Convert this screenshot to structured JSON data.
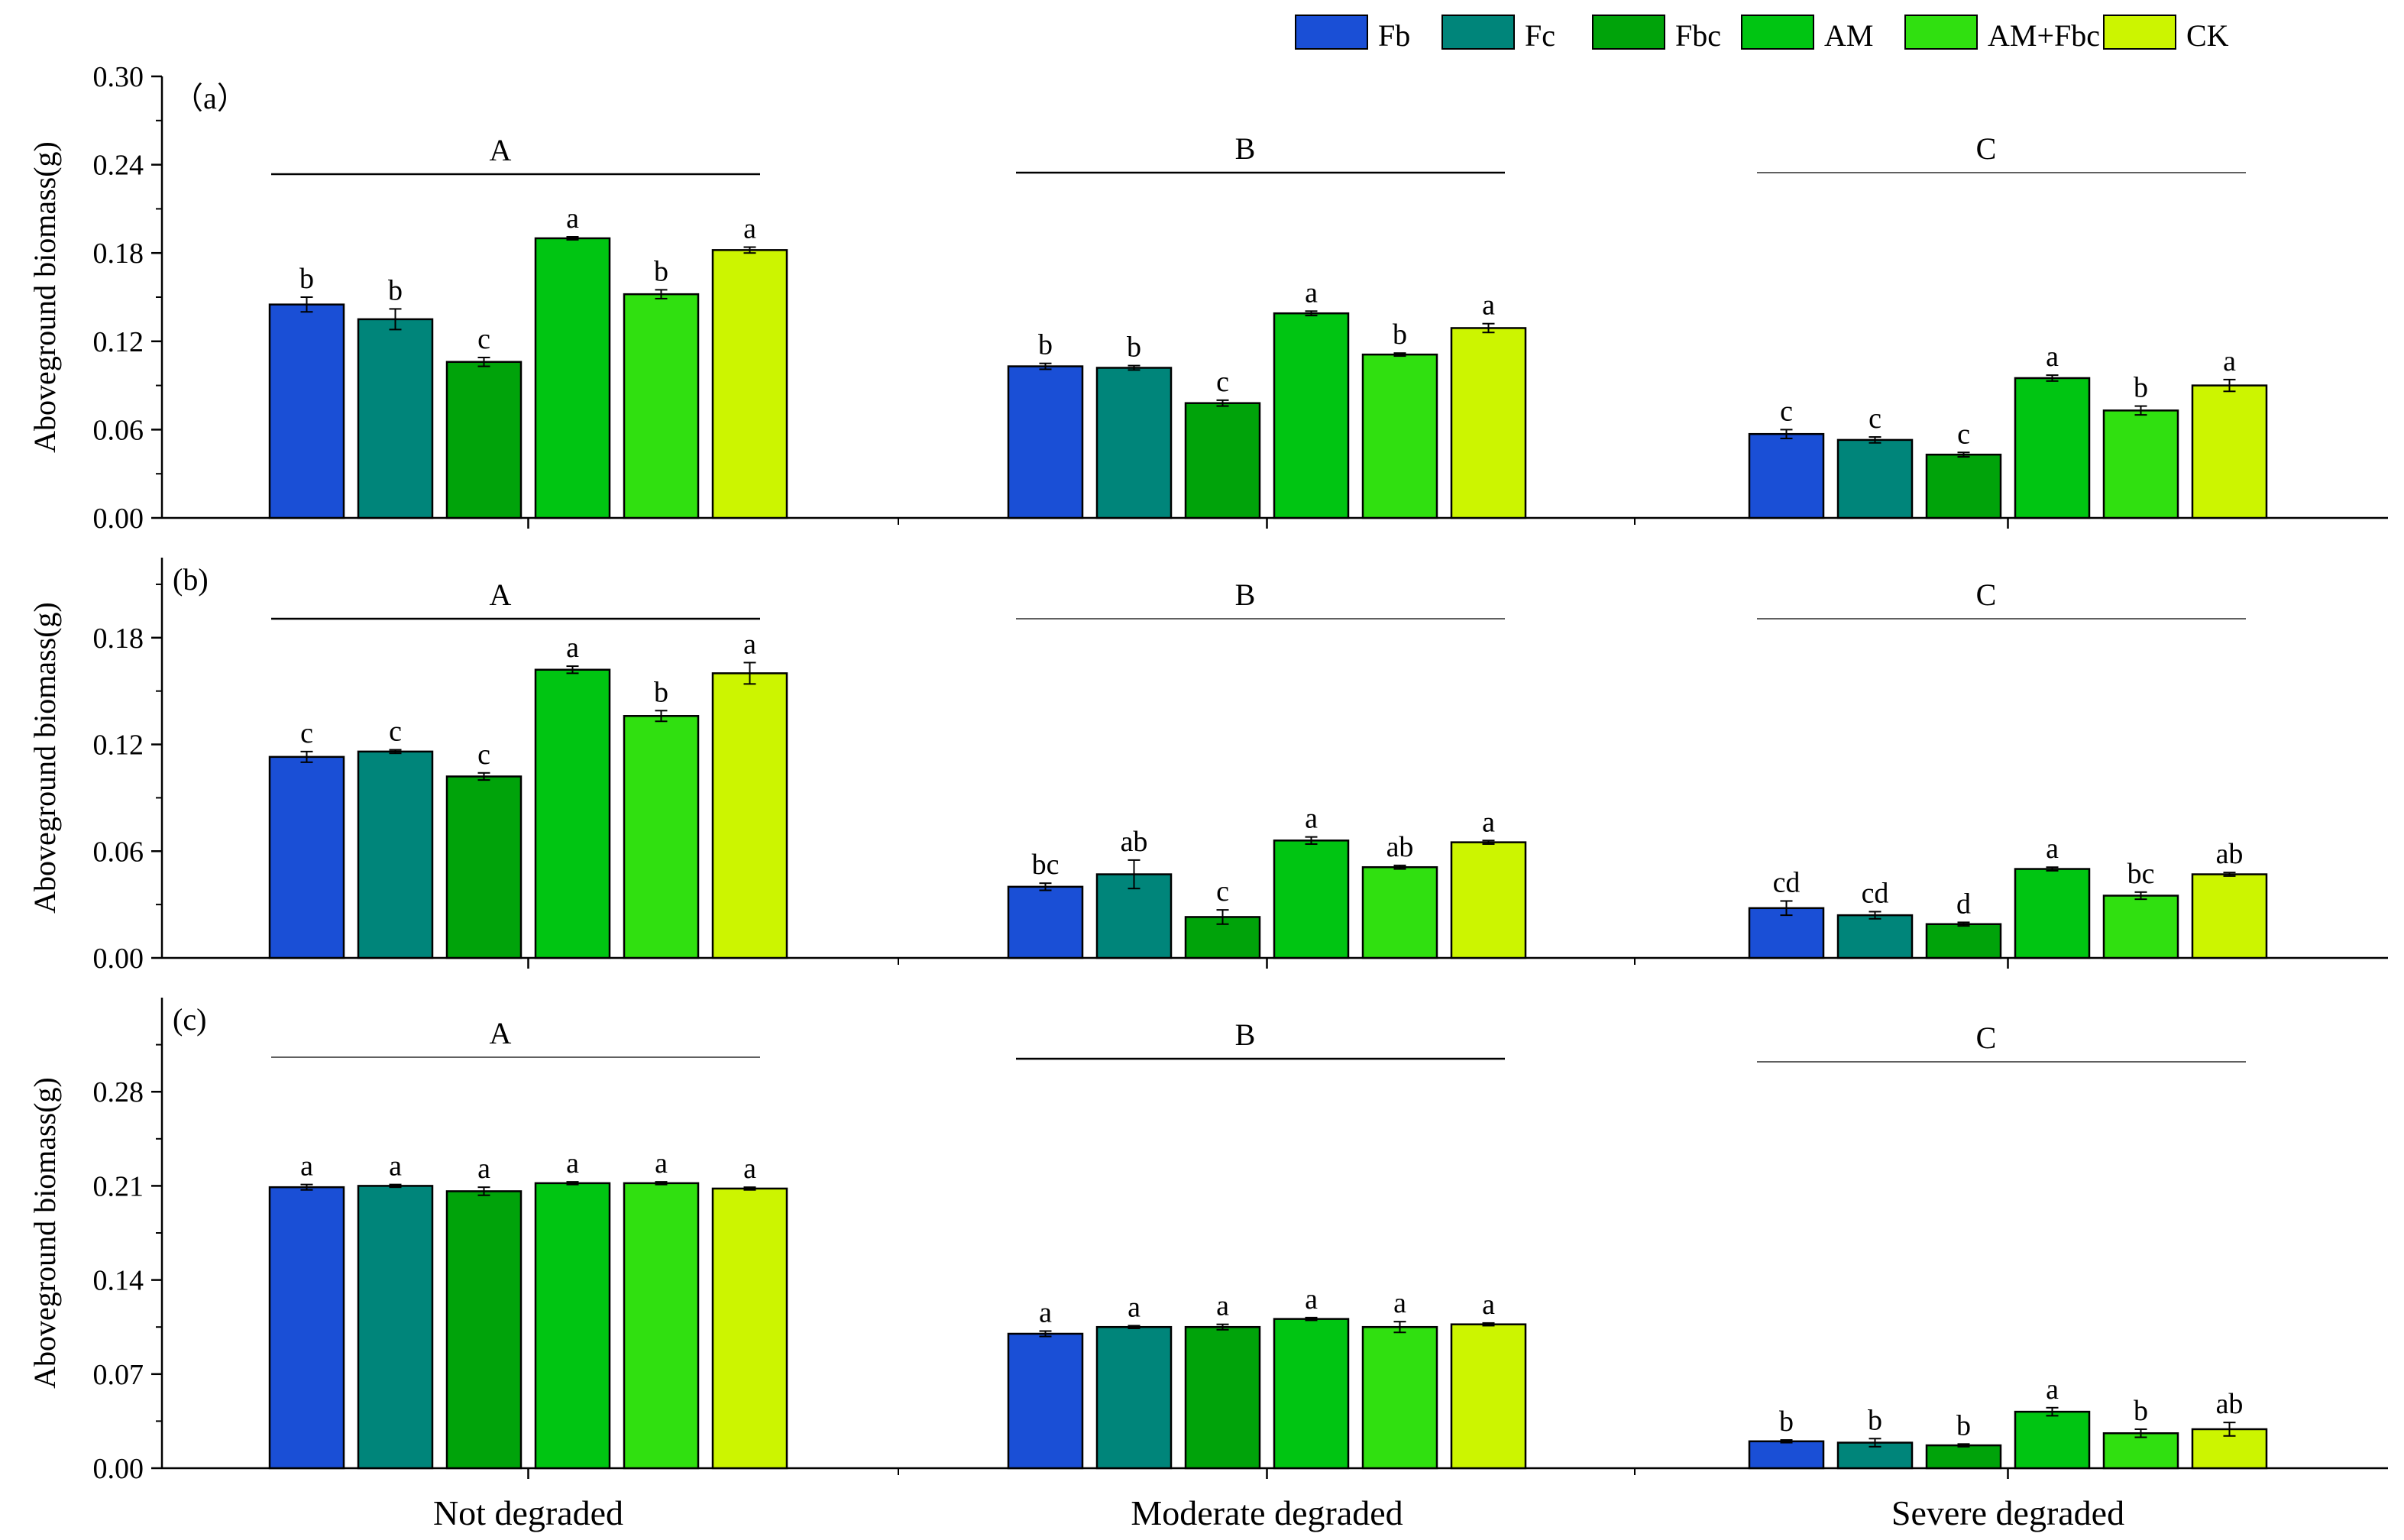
{
  "legend": {
    "items": [
      {
        "label": "Fb",
        "color": "#1a4fd6"
      },
      {
        "label": "Fc",
        "color": "#00857a"
      },
      {
        "label": "Fbc",
        "color": "#00a30a"
      },
      {
        "label": "AM",
        "color": "#00c512"
      },
      {
        "label": "AM+Fbc",
        "color": "#30e010"
      },
      {
        "label": "CK",
        "color": "#ccf500"
      }
    ]
  },
  "chart_data": [
    {
      "type": "bar",
      "panel_label": "（a）",
      "ylabel": "Aboveground biomass(g)",
      "ylim": [
        0,
        0.3
      ],
      "yticks": [
        "0.00",
        "0.06",
        "0.12",
        "0.18",
        "0.24",
        "0.30"
      ],
      "categories": [
        "Not degraded",
        "Moderate degraded",
        "Severe degraded"
      ],
      "group_letters": [
        "A",
        "B",
        "C"
      ],
      "series": [
        {
          "name": "Fb",
          "values": [
            0.145,
            0.103,
            0.057
          ],
          "errors": [
            0.005,
            0.002,
            0.003
          ],
          "letters": [
            "b",
            "b",
            "c"
          ]
        },
        {
          "name": "Fc",
          "values": [
            0.135,
            0.102,
            0.053
          ],
          "errors": [
            0.007,
            0.0015,
            0.002
          ],
          "letters": [
            "b",
            "b",
            "c"
          ]
        },
        {
          "name": "Fbc",
          "values": [
            0.106,
            0.078,
            0.043
          ],
          "errors": [
            0.003,
            0.002,
            0.0015
          ],
          "letters": [
            "c",
            "c",
            "c"
          ]
        },
        {
          "name": "AM",
          "values": [
            0.19,
            0.139,
            0.095
          ],
          "errors": [
            0.001,
            0.0015,
            0.002
          ],
          "letters": [
            "a",
            "a",
            "a"
          ]
        },
        {
          "name": "AM+Fbc",
          "values": [
            0.152,
            0.111,
            0.073
          ],
          "errors": [
            0.003,
            0.001,
            0.003
          ],
          "letters": [
            "b",
            "b",
            "b"
          ]
        },
        {
          "name": "CK",
          "values": [
            0.182,
            0.129,
            0.09
          ],
          "errors": [
            0.002,
            0.003,
            0.004
          ],
          "letters": [
            "a",
            "a",
            "a"
          ]
        }
      ]
    },
    {
      "type": "bar",
      "panel_label": "(b)",
      "ylabel": "Aboveground biomass(g)",
      "ylim": [
        0,
        0.225
      ],
      "yticks": [
        "0.00",
        "0.06",
        "0.12",
        "0.18"
      ],
      "categories": [
        "Not degraded",
        "Moderate degraded",
        "Severe degraded"
      ],
      "group_letters": [
        "A",
        "B",
        "C"
      ],
      "series": [
        {
          "name": "Fb",
          "values": [
            0.113,
            0.04,
            0.028
          ],
          "errors": [
            0.003,
            0.002,
            0.004
          ],
          "letters": [
            "c",
            "bc",
            "cd"
          ]
        },
        {
          "name": "Fc",
          "values": [
            0.116,
            0.047,
            0.024
          ],
          "errors": [
            0.001,
            0.008,
            0.002
          ],
          "letters": [
            "c",
            "ab",
            "cd"
          ]
        },
        {
          "name": "Fbc",
          "values": [
            0.102,
            0.023,
            0.019
          ],
          "errors": [
            0.002,
            0.004,
            0.001
          ],
          "letters": [
            "c",
            "c",
            "d"
          ]
        },
        {
          "name": "AM",
          "values": [
            0.162,
            0.066,
            0.05
          ],
          "errors": [
            0.002,
            0.002,
            0.001
          ],
          "letters": [
            "a",
            "a",
            "a"
          ]
        },
        {
          "name": "AM+Fbc",
          "values": [
            0.136,
            0.051,
            0.035
          ],
          "errors": [
            0.003,
            0.001,
            0.002
          ],
          "letters": [
            "b",
            "ab",
            "bc"
          ]
        },
        {
          "name": "CK",
          "values": [
            0.16,
            0.065,
            0.047
          ],
          "errors": [
            0.006,
            0.001,
            0.001
          ],
          "letters": [
            "a",
            "a",
            "ab"
          ]
        }
      ]
    },
    {
      "type": "bar",
      "panel_label": "(c)",
      "ylabel": "Aboveground biomass(g)",
      "ylim": [
        0,
        0.35
      ],
      "yticks": [
        "0.00",
        "0.07",
        "0.14",
        "0.21",
        "0.28"
      ],
      "xlabel": "",
      "categories": [
        "Not degraded",
        "Moderate degraded",
        "Severe degraded"
      ],
      "group_letters": [
        "A",
        "B",
        "C"
      ],
      "series": [
        {
          "name": "Fb",
          "values": [
            0.209,
            0.1,
            0.02
          ],
          "errors": [
            0.002,
            0.002,
            0.001
          ],
          "letters": [
            "a",
            "a",
            "b"
          ]
        },
        {
          "name": "Fc",
          "values": [
            0.21,
            0.105,
            0.019
          ],
          "errors": [
            0.001,
            0.001,
            0.003
          ],
          "letters": [
            "a",
            "a",
            "b"
          ]
        },
        {
          "name": "Fbc",
          "values": [
            0.206,
            0.105,
            0.017
          ],
          "errors": [
            0.003,
            0.002,
            0.001
          ],
          "letters": [
            "a",
            "a",
            "b"
          ]
        },
        {
          "name": "AM",
          "values": [
            0.212,
            0.111,
            0.042
          ],
          "errors": [
            0.001,
            0.001,
            0.003
          ],
          "letters": [
            "a",
            "a",
            "a"
          ]
        },
        {
          "name": "AM+Fbc",
          "values": [
            0.212,
            0.105,
            0.026
          ],
          "errors": [
            0.001,
            0.004,
            0.003
          ],
          "letters": [
            "a",
            "a",
            "b"
          ]
        },
        {
          "name": "CK",
          "values": [
            0.208,
            0.107,
            0.029
          ],
          "errors": [
            0.001,
            0.001,
            0.005
          ],
          "letters": [
            "a",
            "a",
            "ab"
          ]
        }
      ]
    }
  ]
}
